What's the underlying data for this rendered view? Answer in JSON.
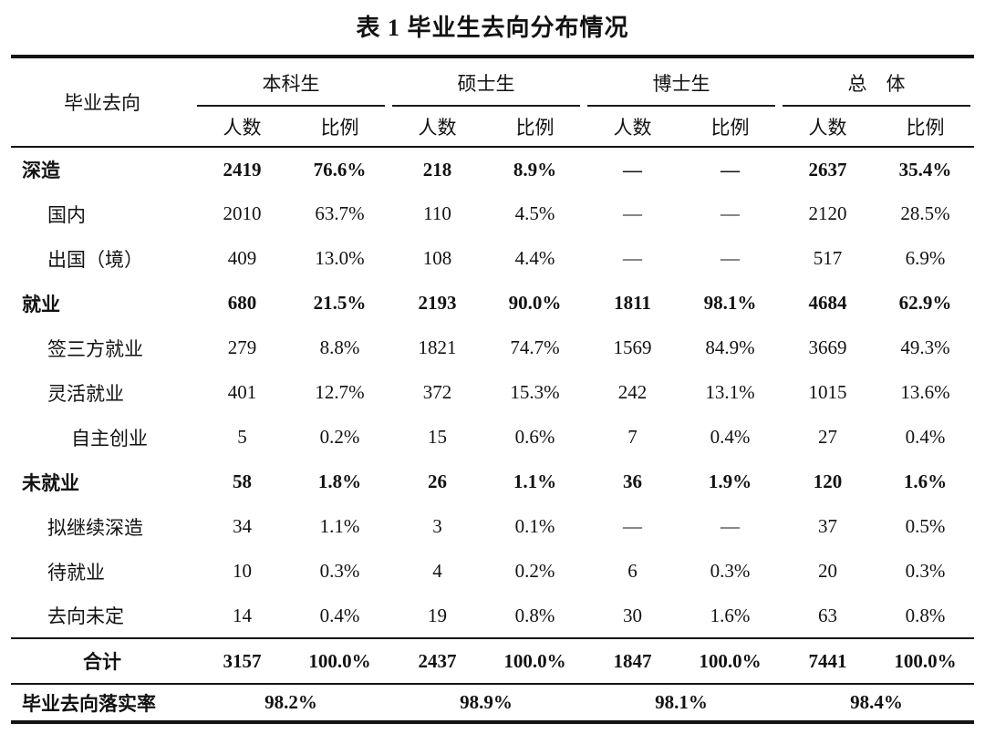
{
  "title": "表 1 毕业生去向分布情况",
  "colors": {
    "background": "#ffffff",
    "text": "#121212",
    "rule": "#141414"
  },
  "table": {
    "label_header": "毕业去向",
    "groups": [
      {
        "label": "本科生"
      },
      {
        "label": "硕士生"
      },
      {
        "label": "博士生"
      },
      {
        "label": "总　体"
      }
    ],
    "subheaders": [
      "人数",
      "比例"
    ],
    "rows": [
      {
        "label": "深造",
        "indent": 0,
        "bold": true,
        "values": [
          "2419",
          "76.6%",
          "218",
          "8.9%",
          "—",
          "—",
          "2637",
          "35.4%"
        ]
      },
      {
        "label": "国内",
        "indent": 1,
        "bold": false,
        "values": [
          "2010",
          "63.7%",
          "110",
          "4.5%",
          "—",
          "—",
          "2120",
          "28.5%"
        ]
      },
      {
        "label": "出国（境）",
        "indent": 1,
        "bold": false,
        "values": [
          "409",
          "13.0%",
          "108",
          "4.4%",
          "—",
          "—",
          "517",
          "6.9%"
        ]
      },
      {
        "label": "就业",
        "indent": 0,
        "bold": true,
        "values": [
          "680",
          "21.5%",
          "2193",
          "90.0%",
          "1811",
          "98.1%",
          "4684",
          "62.9%"
        ]
      },
      {
        "label": "签三方就业",
        "indent": 1,
        "bold": false,
        "values": [
          "279",
          "8.8%",
          "1821",
          "74.7%",
          "1569",
          "84.9%",
          "3669",
          "49.3%"
        ]
      },
      {
        "label": "灵活就业",
        "indent": 1,
        "bold": false,
        "values": [
          "401",
          "12.7%",
          "372",
          "15.3%",
          "242",
          "13.1%",
          "1015",
          "13.6%"
        ]
      },
      {
        "label": "自主创业",
        "indent": 2,
        "bold": false,
        "values": [
          "5",
          "0.2%",
          "15",
          "0.6%",
          "7",
          "0.4%",
          "27",
          "0.4%"
        ]
      },
      {
        "label": "未就业",
        "indent": 0,
        "bold": true,
        "values": [
          "58",
          "1.8%",
          "26",
          "1.1%",
          "36",
          "1.9%",
          "120",
          "1.6%"
        ]
      },
      {
        "label": "拟继续深造",
        "indent": 1,
        "bold": false,
        "values": [
          "34",
          "1.1%",
          "3",
          "0.1%",
          "—",
          "—",
          "37",
          "0.5%"
        ]
      },
      {
        "label": "待就业",
        "indent": 1,
        "bold": false,
        "values": [
          "10",
          "0.3%",
          "4",
          "0.2%",
          "6",
          "0.3%",
          "20",
          "0.3%"
        ]
      },
      {
        "label": "去向未定",
        "indent": 1,
        "bold": false,
        "values": [
          "14",
          "0.4%",
          "19",
          "0.8%",
          "30",
          "1.6%",
          "63",
          "0.8%"
        ]
      }
    ],
    "total_row": {
      "label": "合计",
      "values": [
        "3157",
        "100.0%",
        "2437",
        "100.0%",
        "1847",
        "100.0%",
        "7441",
        "100.0%"
      ]
    },
    "rate_row": {
      "label": "毕业去向落实率",
      "values": [
        "98.2%",
        "98.9%",
        "98.1%",
        "98.4%"
      ]
    }
  }
}
